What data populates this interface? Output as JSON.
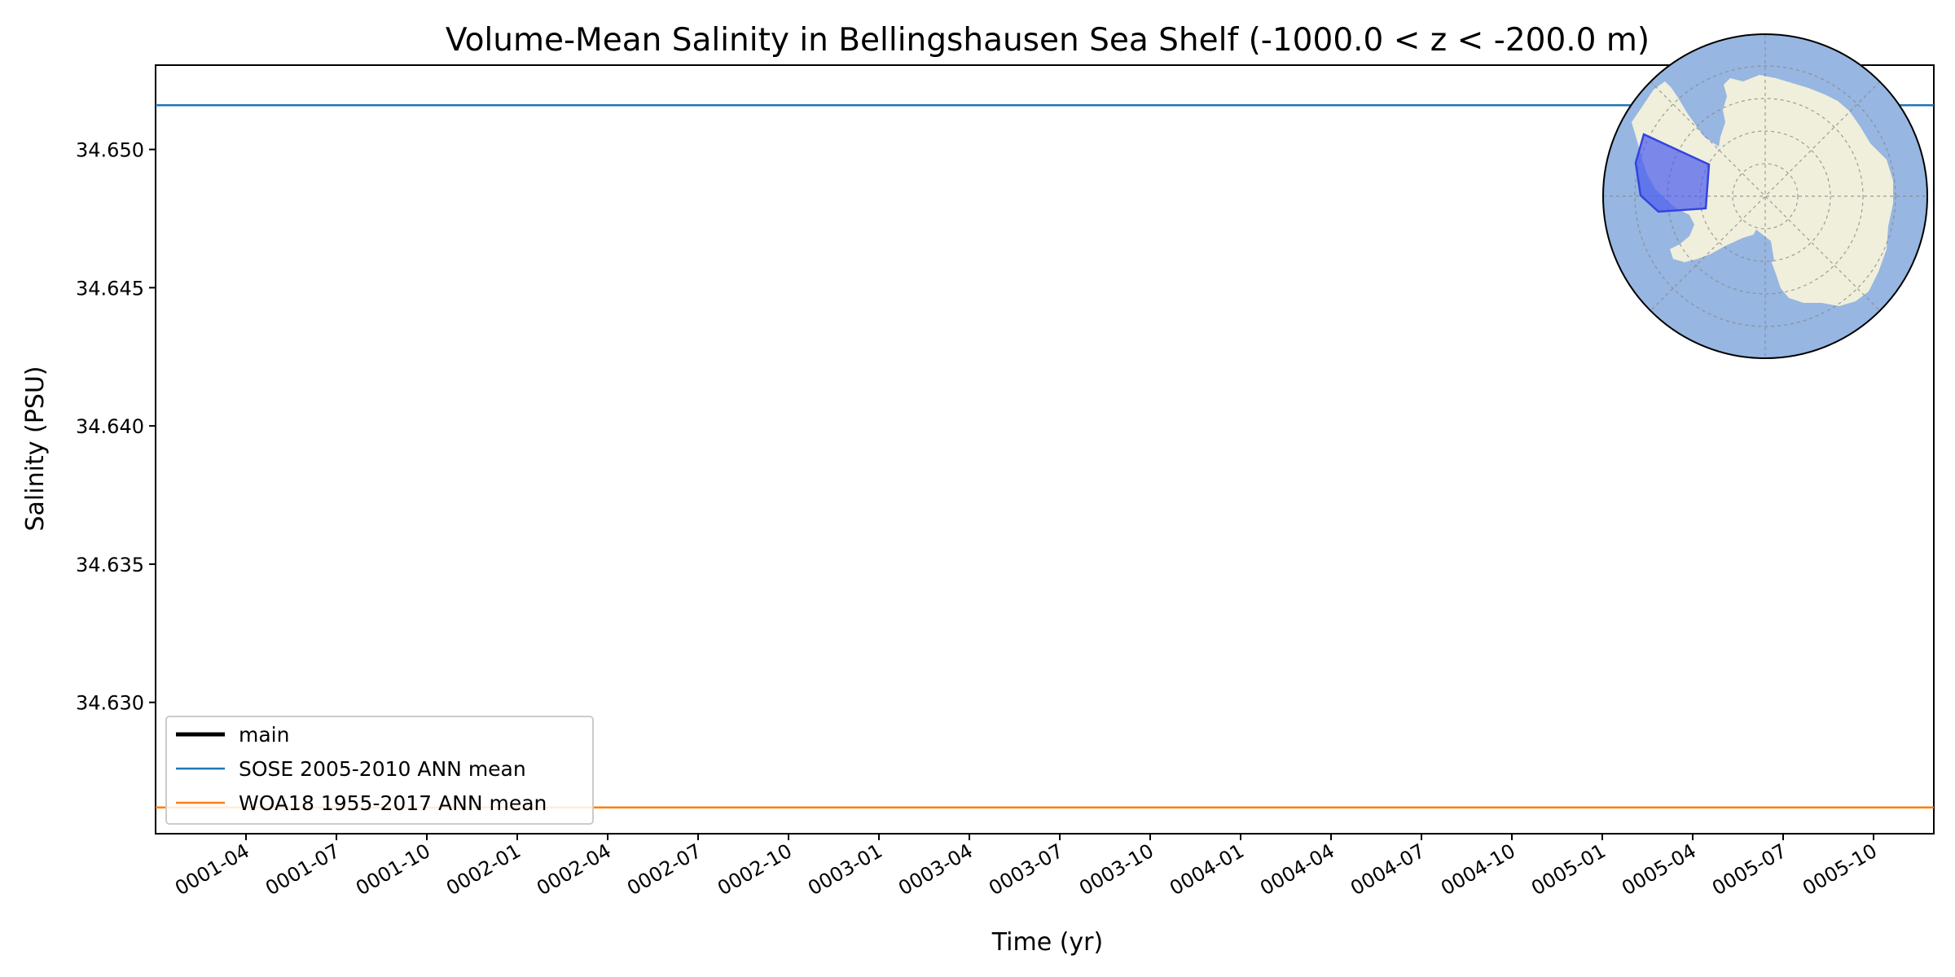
{
  "chart_data": {
    "type": "line",
    "title": "Volume-Mean Salinity in Bellingshausen Sea Shelf (-1000.0 < z < -200.0 m)",
    "xlabel": "Time (yr)",
    "ylabel": "Salinity (PSU)",
    "ylim": [
      34.62525,
      34.65305
    ],
    "y_ticks": [
      34.63,
      34.635,
      34.64,
      34.645,
      34.65
    ],
    "y_tick_labels": [
      "34.630",
      "34.635",
      "34.640",
      "34.645",
      "34.650"
    ],
    "xlim_months": [
      1,
      60
    ],
    "x_tick_labels": [
      "0001-04",
      "0001-07",
      "0001-10",
      "0002-01",
      "0002-04",
      "0002-07",
      "0002-10",
      "0003-01",
      "0003-04",
      "0003-07",
      "0003-10",
      "0004-01",
      "0004-04",
      "0004-07",
      "0004-10",
      "0005-01",
      "0005-04",
      "0005-07",
      "0005-10"
    ],
    "series": [
      {
        "name": "main",
        "color": "#000000",
        "style": "thick",
        "values": []
      },
      {
        "name": "SOSE 2005-2010 ANN mean",
        "color": "#1f77b4",
        "style": "hline",
        "value": 34.6516
      },
      {
        "name": "WOA18 1955-2017 ANN mean",
        "color": "#ff7f0e",
        "style": "hline",
        "value": 34.6262
      }
    ],
    "legend_position": "lower-left",
    "inset": {
      "type": "polar-map",
      "region": "Bellingshausen Sea Shelf",
      "ocean_color": "#97b6e1",
      "land_color": "#efefdb",
      "region_color": "#4a5bef"
    }
  }
}
